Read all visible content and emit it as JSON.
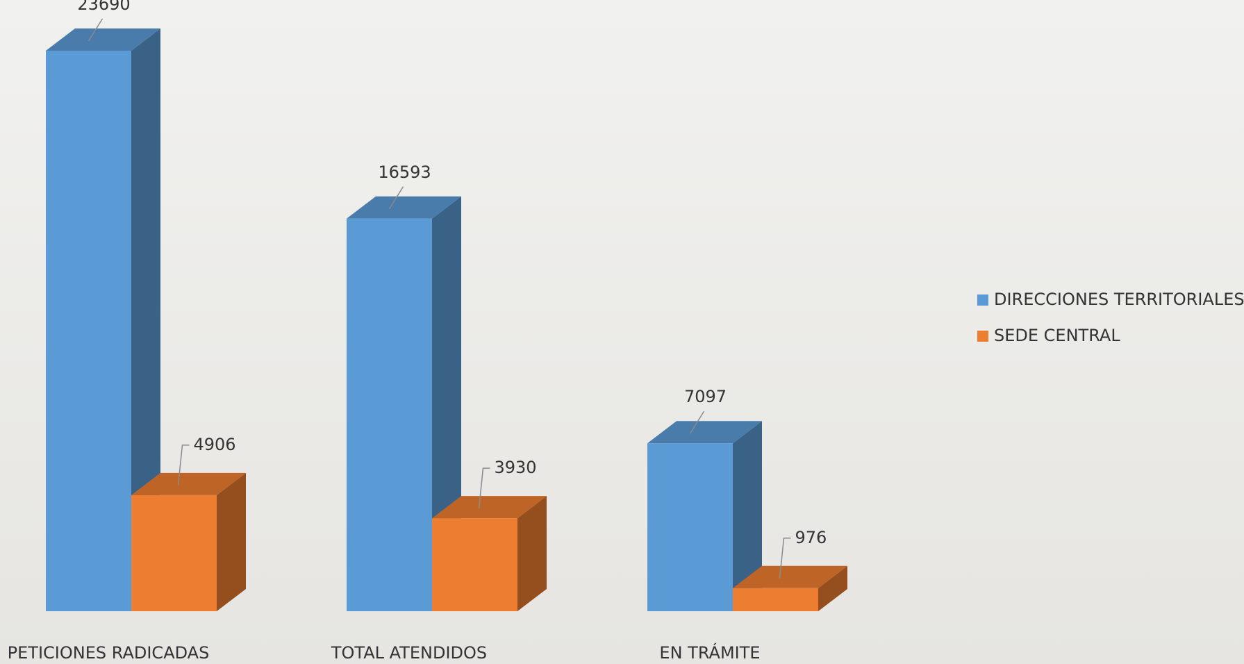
{
  "chart_data": {
    "type": "bar3d",
    "categories": [
      "PETICIONES RADICADAS",
      "TOTAL ATENDIDOS",
      "EN TRÁMITE"
    ],
    "series": [
      {
        "name": "DIRECCIONES TERRITORIALES",
        "color": "#5b9bd5",
        "values": [
          23690,
          16593,
          7097
        ]
      },
      {
        "name": "SEDE CENTRAL",
        "color": "#ed7d31",
        "values": [
          4906,
          3930,
          976
        ]
      }
    ],
    "legend": "right"
  }
}
